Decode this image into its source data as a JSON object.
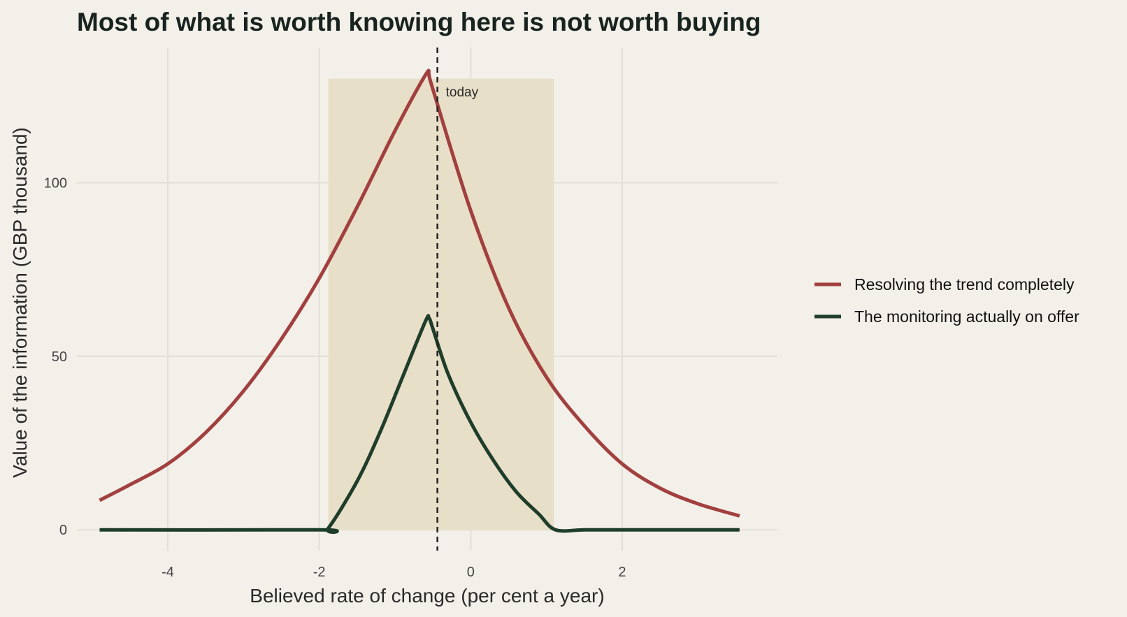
{
  "chart_data": {
    "type": "line",
    "title": "Most of what is worth knowing here is not worth buying",
    "xlabel": "Believed rate of change (per cent a year)",
    "ylabel": "Value of the information (GBP thousand)",
    "xlim": [
      -5.2,
      4.05
    ],
    "ylim": [
      -6,
      139
    ],
    "x_ticks": [
      -4,
      -2,
      0,
      2
    ],
    "y_ticks": [
      0,
      50,
      100
    ],
    "grid": true,
    "legend_position": "right",
    "shaded_band": {
      "x": [
        -1.88,
        1.1
      ],
      "y": [
        0,
        130
      ]
    },
    "reference_line": {
      "x": -0.44,
      "label": "today"
    },
    "series": [
      {
        "name": "Resolving the trend completely",
        "color": "#a23f3f",
        "x": [
          -4.9,
          -4.5,
          -4.0,
          -3.5,
          -3.0,
          -2.5,
          -2.0,
          -1.5,
          -1.0,
          -0.6,
          -0.55,
          -0.5,
          0.0,
          0.5,
          1.0,
          1.5,
          2.0,
          2.5,
          3.0,
          3.55
        ],
        "y": [
          8.5,
          13,
          19,
          28,
          40,
          55,
          72.5,
          93,
          115,
          131,
          131,
          127,
          92,
          64,
          44,
          30,
          19,
          12,
          7.5,
          4
        ]
      },
      {
        "name": "The monitoring actually on offer",
        "color": "#1f3d2b",
        "x": [
          -4.9,
          -2.0,
          -1.88,
          -1.5,
          -1.2,
          -0.9,
          -0.6,
          -0.55,
          -0.5,
          -0.3,
          0.0,
          0.3,
          0.6,
          0.9,
          1.12,
          1.5,
          2.0,
          3.55
        ],
        "y": [
          0,
          0,
          0.5,
          14,
          28,
          44,
          60,
          61,
          58,
          45,
          31,
          20,
          11,
          4.5,
          0,
          0,
          0,
          0
        ]
      }
    ]
  },
  "colors": {
    "background": "#f2f0e9",
    "gridline": "#e1dfd7",
    "band": "#e8dfc8",
    "reference_line": "#222222"
  }
}
